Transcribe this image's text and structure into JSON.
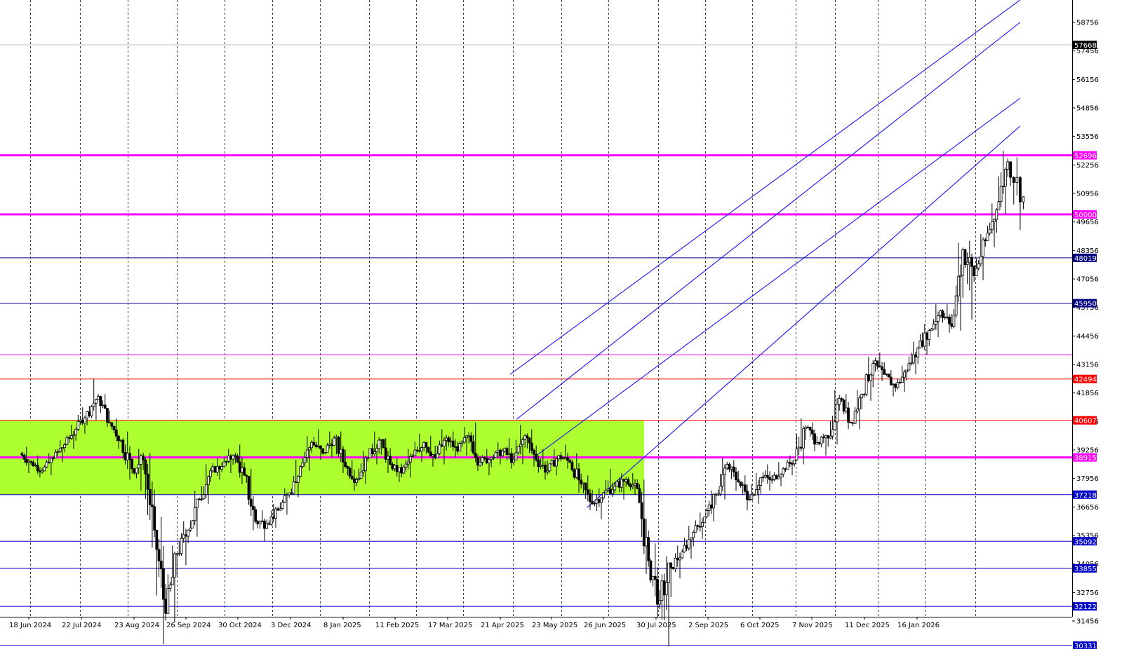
{
  "chart_data": {
    "type": "candlestick",
    "title": "",
    "xlabel": "",
    "ylabel": "",
    "grid": {
      "vertical": true,
      "horizontal": false
    },
    "colors": {
      "background": "#ffffff",
      "candle": "#000000",
      "zone_fill": "#adff2f",
      "magenta": "#ff00ff",
      "red": "#ff0000",
      "blue": "#0000c8",
      "channel": "#0000ff",
      "current_price_badge": "#000000"
    },
    "ylim": [
      29700,
      59600
    ],
    "y_ticks": [
      31456,
      32756,
      34056,
      35356,
      36656,
      37956,
      39256,
      40556,
      41856,
      43156,
      44456,
      45756,
      47056,
      48356,
      49656,
      50956,
      52256,
      53556,
      54856,
      56156,
      57456,
      58756
    ],
    "x_date_labels": [
      "18 Jun 2024",
      "22 Jul 2024",
      "23 Aug 2024",
      "26 Sep 2024",
      "30 Oct 2024",
      "3 Dec 2024",
      "8 Jan 2025",
      "11 Feb 2025",
      "17 Mar 2025",
      "21 Apr 2025",
      "23 May 2025",
      "26 Jun 2025",
      "30 Jul 2025",
      "2 Sep 2025",
      "6 Oct 2025",
      "7 Nov 2025",
      "11 Dec 2025",
      "16 Jan 2026"
    ],
    "current_price": "57668",
    "price_levels": [
      {
        "value": 52696,
        "label": "52696",
        "color": "#ff00ff",
        "weight": "thick"
      },
      {
        "value": 50000,
        "label": "50000",
        "color": "#ff00ff",
        "weight": "thick"
      },
      {
        "value": 48019,
        "label": "48019",
        "color": "#000080",
        "weight": "thin"
      },
      {
        "value": 45950,
        "label": "45950",
        "color": "#000080",
        "weight": "thin"
      },
      {
        "value": 43600,
        "label": "",
        "color": "#ff00ff",
        "weight": "thin"
      },
      {
        "value": 42494,
        "label": "42494",
        "color": "#ff0000",
        "weight": "thin"
      },
      {
        "value": 40607,
        "label": "40607",
        "color": "#ff0000",
        "weight": "thin"
      },
      {
        "value": 38915,
        "label": "38915",
        "color": "#ff00ff",
        "weight": "thick"
      },
      {
        "value": 37218,
        "label": "37218",
        "color": "#0000c8",
        "weight": "thin"
      },
      {
        "value": 35092,
        "label": "35092",
        "color": "#0000c8",
        "weight": "thin"
      },
      {
        "value": 33855,
        "label": "33855",
        "color": "#0000c8",
        "weight": "thin"
      },
      {
        "value": 32122,
        "label": "32122",
        "color": "#0000c8",
        "weight": "thin"
      },
      {
        "value": 30331,
        "label": "30331",
        "color": "#0000c8",
        "weight": "thin"
      }
    ],
    "zone": {
      "from": "2024-06-01",
      "to": "2025-07-30",
      "low": 37218,
      "high": 40607
    },
    "channels": [
      {
        "from_date": "2025-04-16",
        "from_value": 38870,
        "to_date": "2026-02-14",
        "to_value": 55300
      },
      {
        "from_date": "2025-04-06",
        "from_value": 40650,
        "to_date": "2026-02-14",
        "to_value": 58760
      },
      {
        "from_date": "2025-04-02",
        "from_value": 42700,
        "to_date": "2026-02-14",
        "to_value": 59780
      },
      {
        "from_date": "2025-05-20",
        "from_value": 36630,
        "to_date": "2026-02-14",
        "to_value": 54030
      }
    ],
    "candles_weekly": [
      [
        "2024-06-01",
        39100,
        39400,
        38200,
        38700
      ],
      [
        "2024-06-08",
        38700,
        39000,
        38000,
        38300
      ],
      [
        "2024-06-15",
        38300,
        39100,
        38100,
        38900
      ],
      [
        "2024-06-22",
        38900,
        39700,
        38700,
        39500
      ],
      [
        "2024-06-29",
        39500,
        40400,
        39300,
        40200
      ],
      [
        "2024-07-06",
        40200,
        41200,
        40000,
        41000
      ],
      [
        "2024-07-13",
        41000,
        42494,
        40600,
        41700
      ],
      [
        "2024-07-20",
        41700,
        41800,
        40300,
        40500
      ],
      [
        "2024-07-27",
        40500,
        40700,
        39300,
        39700
      ],
      [
        "2024-08-03",
        39700,
        40100,
        37900,
        38400
      ],
      [
        "2024-08-10",
        38400,
        39300,
        37400,
        38800
      ],
      [
        "2024-08-17",
        38800,
        39100,
        34800,
        35600
      ],
      [
        "2024-08-24",
        35600,
        36200,
        30400,
        31800
      ],
      [
        "2024-08-31",
        31800,
        34900,
        31400,
        34500
      ],
      [
        "2024-09-07",
        34500,
        36000,
        34000,
        35600
      ],
      [
        "2024-09-14",
        35600,
        37400,
        35300,
        37000
      ],
      [
        "2024-09-21",
        37000,
        38600,
        36800,
        38300
      ],
      [
        "2024-09-28",
        38300,
        38900,
        37900,
        38500
      ],
      [
        "2024-10-05",
        38500,
        39300,
        38200,
        39000
      ],
      [
        "2024-10-12",
        39000,
        39500,
        37700,
        38100
      ],
      [
        "2024-10-19",
        38100,
        38400,
        35600,
        36000
      ],
      [
        "2024-10-26",
        36000,
        36500,
        35100,
        35900
      ],
      [
        "2024-11-02",
        35900,
        36800,
        35700,
        36500
      ],
      [
        "2024-11-09",
        36500,
        37500,
        36300,
        37300
      ],
      [
        "2024-11-16",
        37300,
        38800,
        37100,
        38500
      ],
      [
        "2024-11-23",
        38500,
        39900,
        38300,
        39600
      ],
      [
        "2024-11-30",
        39600,
        40200,
        38800,
        39100
      ],
      [
        "2024-12-07",
        39100,
        40100,
        38900,
        39800
      ],
      [
        "2024-12-14",
        39800,
        40100,
        38200,
        38500
      ],
      [
        "2024-12-21",
        38500,
        38800,
        37400,
        37900
      ],
      [
        "2024-12-28",
        37900,
        39200,
        37700,
        38900
      ],
      [
        "2025-01-04",
        38900,
        40100,
        38600,
        39700
      ],
      [
        "2025-01-11",
        39700,
        39800,
        38200,
        38600
      ],
      [
        "2025-01-18",
        38600,
        38900,
        37800,
        38200
      ],
      [
        "2025-01-25",
        38200,
        39300,
        38000,
        39000
      ],
      [
        "2025-02-01",
        39000,
        40000,
        38700,
        39600
      ],
      [
        "2025-02-08",
        39600,
        39900,
        38500,
        38900
      ],
      [
        "2025-02-15",
        38900,
        40200,
        38600,
        39800
      ],
      [
        "2025-02-22",
        39800,
        40100,
        38900,
        39200
      ],
      [
        "2025-03-01",
        39200,
        40300,
        39000,
        39900
      ],
      [
        "2025-03-08",
        39900,
        40500,
        38300,
        38700
      ],
      [
        "2025-03-15",
        38700,
        39300,
        38100,
        38900
      ],
      [
        "2025-03-22",
        38900,
        39600,
        38600,
        39200
      ],
      [
        "2025-03-29",
        39200,
        39800,
        38400,
        38800
      ],
      [
        "2025-04-05",
        38800,
        40400,
        38600,
        39900
      ],
      [
        "2025-04-12",
        39900,
        40200,
        38500,
        38800
      ],
      [
        "2025-04-19",
        38800,
        39300,
        37900,
        38300
      ],
      [
        "2025-04-26",
        38300,
        39300,
        38100,
        39000
      ],
      [
        "2025-05-03",
        39000,
        39500,
        38400,
        38700
      ],
      [
        "2025-05-10",
        38700,
        39100,
        37300,
        37700
      ],
      [
        "2025-05-17",
        37700,
        38100,
        36500,
        36800
      ],
      [
        "2025-05-24",
        36800,
        37500,
        36100,
        37300
      ],
      [
        "2025-05-31",
        37300,
        38400,
        37100,
        37600
      ],
      [
        "2025-06-07",
        37600,
        38200,
        37000,
        37900
      ],
      [
        "2025-06-14",
        37900,
        38200,
        37200,
        37500
      ],
      [
        "2025-06-21",
        37500,
        37900,
        33600,
        34200
      ],
      [
        "2025-06-28",
        34200,
        35000,
        31600,
        32400
      ],
      [
        "2025-07-05",
        32400,
        34400,
        30300,
        33900
      ],
      [
        "2025-07-12",
        33900,
        34900,
        33400,
        34600
      ],
      [
        "2025-07-19",
        34600,
        35800,
        34300,
        35500
      ],
      [
        "2025-07-26",
        35500,
        36400,
        35200,
        36200
      ],
      [
        "2025-08-02",
        36200,
        37400,
        36000,
        37200
      ],
      [
        "2025-08-09",
        37200,
        38900,
        37000,
        38600
      ],
      [
        "2025-08-16",
        38600,
        38800,
        37400,
        37800
      ],
      [
        "2025-08-23",
        37800,
        38100,
        36500,
        37000
      ],
      [
        "2025-08-30",
        37000,
        38200,
        36800,
        38000
      ],
      [
        "2025-09-06",
        38000,
        38600,
        37400,
        37900
      ],
      [
        "2025-09-13",
        37900,
        38700,
        37600,
        38400
      ],
      [
        "2025-09-20",
        38400,
        39000,
        38100,
        38800
      ],
      [
        "2025-09-27",
        38800,
        40700,
        38600,
        40300
      ],
      [
        "2025-10-04",
        40300,
        40500,
        39200,
        39600
      ],
      [
        "2025-10-11",
        39600,
        40000,
        39000,
        39800
      ],
      [
        "2025-10-18",
        39800,
        42000,
        39500,
        41600
      ],
      [
        "2025-10-25",
        41600,
        41800,
        40200,
        40500
      ],
      [
        "2025-11-01",
        40500,
        42000,
        40200,
        41800
      ],
      [
        "2025-11-08",
        41800,
        43500,
        41500,
        43200
      ],
      [
        "2025-11-15",
        43200,
        43700,
        42400,
        42700
      ],
      [
        "2025-11-22",
        42700,
        42900,
        41700,
        42100
      ],
      [
        "2025-11-29",
        42100,
        43100,
        41900,
        42900
      ],
      [
        "2025-12-06",
        42900,
        44200,
        42700,
        43900
      ],
      [
        "2025-12-13",
        43900,
        45000,
        43600,
        44700
      ],
      [
        "2025-12-20",
        44700,
        45900,
        44400,
        45600
      ],
      [
        "2025-12-27",
        45600,
        45900,
        44600,
        44900
      ],
      [
        "2026-01-03",
        44900,
        48700,
        44700,
        48400
      ],
      [
        "2026-01-10",
        48400,
        48800,
        45200,
        47200
      ],
      [
        "2026-01-17",
        47200,
        49100,
        47000,
        48800
      ],
      [
        "2026-01-24",
        48800,
        50500,
        48500,
        50200
      ],
      [
        "2026-01-31",
        50200,
        52900,
        50000,
        52400
      ],
      [
        "2026-02-07",
        52400,
        52600,
        49300,
        50800
      ]
    ]
  }
}
